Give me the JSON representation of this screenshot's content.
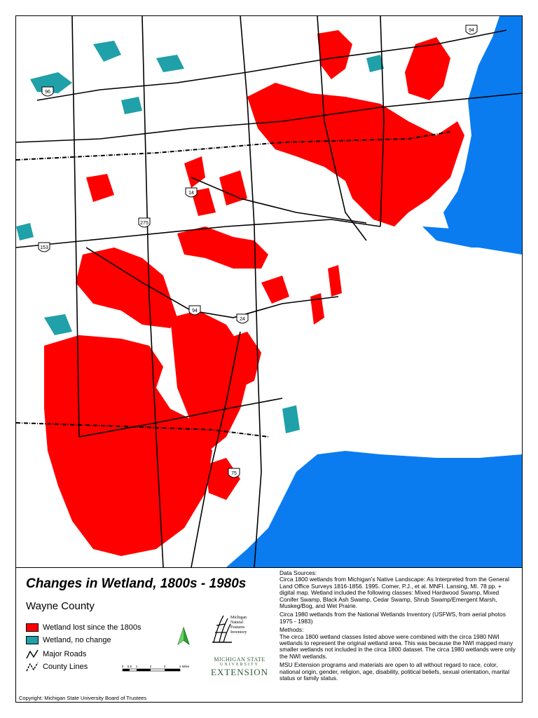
{
  "map": {
    "title": "Changes in Wetland, 1800s - 1980s",
    "region": "Wayne County",
    "colors": {
      "wetland_lost": "#ff0000",
      "wetland_no_change": "#20a0a8",
      "water": "#0a7cf0",
      "road": "#000000",
      "background": "#ffffff"
    },
    "route_shields": [
      "96",
      "14",
      "275",
      "153",
      "94",
      "24",
      "75",
      "94"
    ],
    "legend": {
      "items": [
        {
          "label": "Wetland lost since the 1800s",
          "color": "#ff0000"
        },
        {
          "label": "Wetland, no change",
          "color": "#20a0a8"
        },
        {
          "label": "Major Roads"
        },
        {
          "label": "County Lines"
        }
      ],
      "scale_labels": [
        "0",
        "0.5",
        "1",
        "2",
        "3",
        "4",
        "Miles"
      ]
    },
    "logos": {
      "mnfi": [
        "Michigan",
        "Natural",
        "Features",
        "Inventory"
      ],
      "msu": [
        "MICHIGAN STATE",
        "UNIVERSITY",
        "EXTENSION"
      ]
    },
    "copyright": "Copyright: Michigan State University Board of Trustees",
    "data_sources": {
      "heading": "Data Sources:",
      "text1": "Circa 1800 wetlands from Michigan's Native Landscape: As Interpreted from the General Land Office Surveys 1816-1856. 1995. Comer, P.J., et al. MNFI. Lansing, MI. 78 pp. + digital map. Wetland included the following classes: Mixed Hardwood Swamp, Mixed Conifer Swamp, Black Ash Swamp, Cedar Swamp, Shrub Swamp/Emergent Marsh, Muskeg/Bog, and Wet Prairie.",
      "text2": "Circa 1980 wetlands from the National Wetlands Inventory (USFWS, from aerial photos 1975 - 1983)"
    },
    "methods": {
      "heading": "Methods:",
      "text": "The circa 1800 wetland classes listed above were combined with the circa 1980 NWI wetlands to represent the original wetland area. This was because the NWI mapped many smaller wetlands not included in the circa 1800 dataset. The circa 1980 wetlands were only the NWI wetlands."
    },
    "disclaimer": "MSU Extension programs and materials are open to all without regard to race, color, national origin, gender, religion, age, disability, political beliefs, sexual orientation, marital status or family status."
  }
}
